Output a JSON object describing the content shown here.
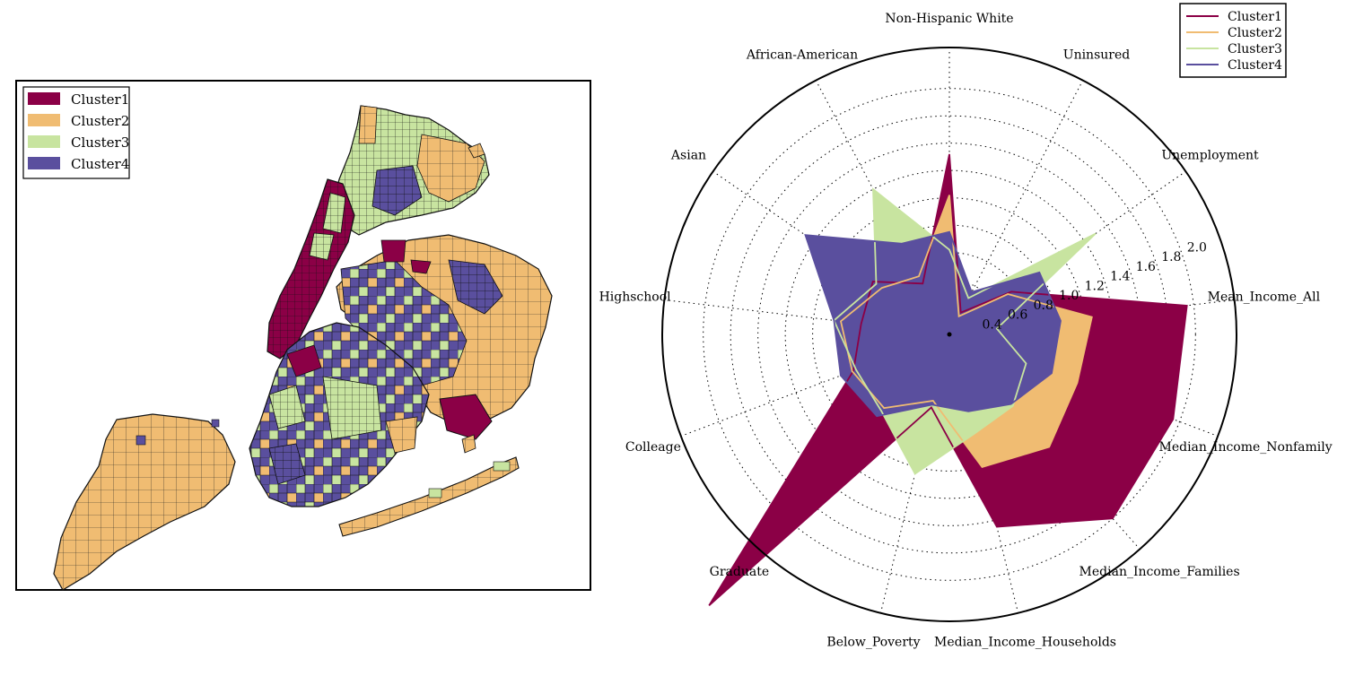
{
  "colors": {
    "cluster1": "#8b0046",
    "cluster2": "#f0bc72",
    "cluster3": "#c8e4a0",
    "cluster4": "#5a4f9e"
  },
  "map": {
    "legend": [
      "Cluster1",
      "Cluster2",
      "Cluster3",
      "Cluster4"
    ]
  },
  "chart_data": {
    "type": "radar",
    "axes": [
      "Non-Hispanic White",
      "Uninsured",
      "Unemployment",
      "Mean_Income_All",
      "Median_Income_Nonfamily",
      "Median_Income_Families",
      "Median_Income_Households",
      "Below_Poverty",
      "Graduate",
      "Colleage",
      "Highschool",
      "Asian",
      "African-American"
    ],
    "radial_ticks": [
      0.4,
      0.6,
      0.8,
      1.0,
      1.2,
      1.4,
      1.6,
      1.8,
      2.0
    ],
    "rlim": [
      0.2,
      2.3
    ],
    "grid": true,
    "legend_position": "top-right",
    "series": [
      {
        "name": "Cluster1",
        "values": [
          1.52,
          0.38,
          0.75,
          1.95,
          1.95,
          2.0,
          1.65,
          0.75,
          2.85,
          0.95,
          0.85,
          0.88,
          0.62
        ]
      },
      {
        "name": "Cluster2",
        "values": [
          1.22,
          0.35,
          0.72,
          1.25,
          1.2,
          1.3,
          1.2,
          0.7,
          0.92,
          0.96,
          1.0,
          0.8,
          0.68
        ]
      },
      {
        "name": "Cluster3",
        "values": [
          0.82,
          0.5,
          1.5,
          0.55,
          0.8,
          0.9,
          0.95,
          1.25,
          0.95,
          0.93,
          1.05,
          0.85,
          1.4
        ]
      },
      {
        "name": "Cluster4",
        "values": [
          0.95,
          0.55,
          1.0,
          1.02,
          1.0,
          0.88,
          0.78,
          0.73,
          1.0,
          1.05,
          1.05,
          1.48,
          0.95
        ]
      }
    ]
  }
}
